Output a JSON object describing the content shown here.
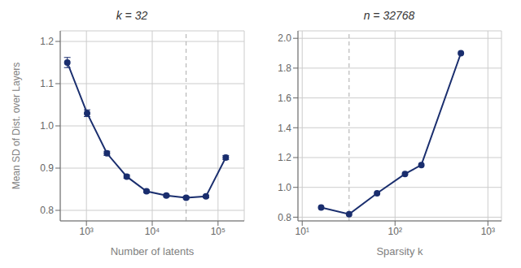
{
  "chart_data": [
    {
      "type": "line",
      "title": "k = 32",
      "xlabel": "Number of latents",
      "ylabel": "Mean SD of Dist. over Layers",
      "x": [
        512,
        1024,
        2048,
        4096,
        8192,
        16384,
        32768,
        65536,
        131072
      ],
      "values": [
        1.15,
        1.03,
        0.935,
        0.88,
        0.845,
        0.835,
        0.83,
        0.833,
        0.925
      ],
      "yerr": [
        0.012,
        0.008,
        0.005,
        0.004,
        0.003,
        0.003,
        0.003,
        0.003,
        0.005
      ],
      "vline": 32768,
      "color": "#1a2e6e",
      "marker": "o",
      "log": "x",
      "grid": true,
      "xlim": [
        400,
        250000
      ],
      "ylim": [
        0.775,
        1.225
      ],
      "xticks": [
        {
          "value": 1000,
          "label": "10³"
        },
        {
          "value": 10000,
          "label": "10⁴"
        },
        {
          "value": 100000,
          "label": "10⁵"
        }
      ],
      "yticks": [
        0.8,
        0.9,
        {
          "value": 1.0,
          "label": "1.0"
        },
        1.1,
        1.2
      ]
    },
    {
      "type": "line",
      "title": "n = 32768",
      "xlabel": "Sparsity k",
      "x": [
        16,
        32,
        64,
        128,
        192,
        512
      ],
      "values": [
        0.865,
        0.82,
        0.96,
        1.09,
        1.15,
        1.9
      ],
      "vline": 32,
      "color": "#1a2e6e",
      "marker": "o",
      "log": "x",
      "grid": true,
      "xlim": [
        9,
        1400
      ],
      "ylim": [
        0.775,
        2.05
      ],
      "xticks": [
        {
          "value": 10,
          "label": "10¹"
        },
        {
          "value": 100,
          "label": "10²"
        },
        {
          "value": 1000,
          "label": "10³"
        }
      ],
      "yticks": [
        0.8,
        {
          "value": 1.0,
          "label": "1.0"
        },
        1.2,
        1.4,
        1.6,
        1.8,
        {
          "value": 2.0,
          "label": "2.0"
        }
      ]
    }
  ]
}
